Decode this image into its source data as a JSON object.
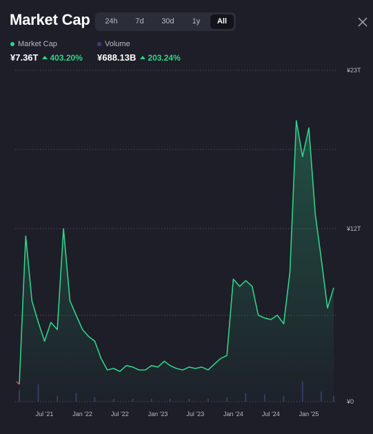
{
  "header": {
    "title": "Market Cap",
    "tabs": [
      {
        "label": "24h",
        "active": false
      },
      {
        "label": "7d",
        "active": false
      },
      {
        "label": "30d",
        "active": false
      },
      {
        "label": "1y",
        "active": false
      },
      {
        "label": "All",
        "active": true
      }
    ]
  },
  "legend": {
    "market_cap_label": "Market Cap",
    "market_cap_color": "#2fd38a",
    "market_cap_value": "¥7.36T",
    "market_cap_change": "403.20%",
    "volume_label": "Volume",
    "volume_color": "#3a3f7a",
    "volume_value": "¥688.13B",
    "volume_change": "203.24%"
  },
  "chart_data": {
    "type": "area",
    "x_tick_labels": [
      "Jul '21",
      "Jan '22",
      "Jul '22",
      "Jan '23",
      "Jul '23",
      "Jan '24",
      "Jul '24",
      "Jan '25"
    ],
    "y_tick_labels": [
      "¥23T",
      "¥12T",
      "¥0"
    ],
    "y_ticks": [
      23,
      12,
      0
    ],
    "ylim": [
      0,
      23
    ],
    "grid": true,
    "series": [
      {
        "name": "Market Cap",
        "x": [
          "2021-03",
          "2021-04",
          "2021-05",
          "2021-06",
          "2021-07",
          "2021-08",
          "2021-09",
          "2021-10",
          "2021-11",
          "2021-12",
          "2022-01",
          "2022-02",
          "2022-03",
          "2022-04",
          "2022-05",
          "2022-06",
          "2022-07",
          "2022-08",
          "2022-09",
          "2022-10",
          "2022-11",
          "2022-12",
          "2023-01",
          "2023-02",
          "2023-03",
          "2023-04",
          "2023-05",
          "2023-06",
          "2023-07",
          "2023-08",
          "2023-09",
          "2023-10",
          "2023-11",
          "2023-12",
          "2024-01",
          "2024-02",
          "2024-03",
          "2024-04",
          "2024-05",
          "2024-06",
          "2024-07",
          "2024-08",
          "2024-09",
          "2024-10",
          "2024-11",
          "2024-12",
          "2025-01",
          "2025-02",
          "2025-03",
          "2025-04",
          "2025-05"
        ],
        "values": [
          1.2,
          11.5,
          7.0,
          5.5,
          4.2,
          5.5,
          5.0,
          12.0,
          7.0,
          6.0,
          5.0,
          4.5,
          4.2,
          3.0,
          2.2,
          2.3,
          2.1,
          2.5,
          2.4,
          2.2,
          2.2,
          2.5,
          2.4,
          2.8,
          2.5,
          2.3,
          2.2,
          2.4,
          2.3,
          2.4,
          2.2,
          2.6,
          3.0,
          3.2,
          8.5,
          8.0,
          8.4,
          8.0,
          6.0,
          5.8,
          5.7,
          6.0,
          5.4,
          9.0,
          19.5,
          17.0,
          19.0,
          13.0,
          10.0,
          6.5,
          7.9
        ]
      },
      {
        "name": "Volume",
        "x": [
          "2021-03",
          "2021-06",
          "2021-09",
          "2021-12",
          "2022-03",
          "2022-06",
          "2022-09",
          "2022-12",
          "2023-03",
          "2023-06",
          "2023-09",
          "2023-12",
          "2024-03",
          "2024-06",
          "2024-09",
          "2024-12",
          "2025-03",
          "2025-05"
        ],
        "values": [
          0.8,
          1.2,
          0.4,
          0.6,
          0.3,
          0.2,
          0.2,
          0.2,
          0.2,
          0.2,
          0.2,
          0.3,
          0.6,
          0.5,
          0.4,
          1.4,
          0.7,
          0.4
        ]
      }
    ]
  }
}
